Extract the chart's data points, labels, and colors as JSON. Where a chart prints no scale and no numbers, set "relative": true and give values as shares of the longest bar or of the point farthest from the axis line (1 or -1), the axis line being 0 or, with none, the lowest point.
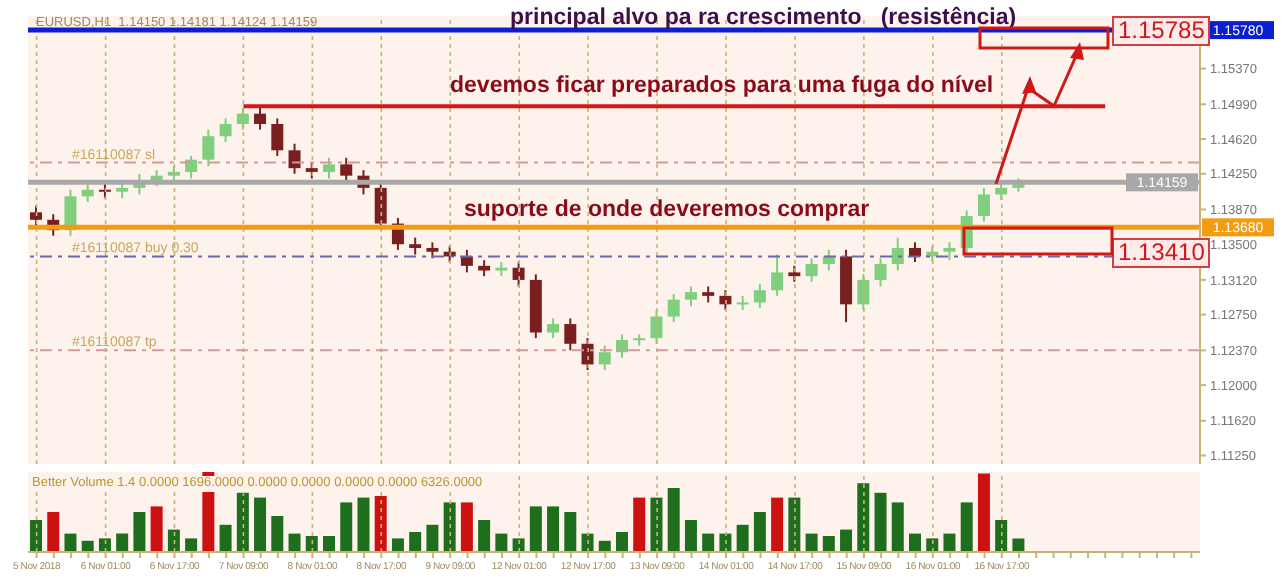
{
  "chart_data": [
    {
      "type": "candlestick",
      "title": "EURUSD,H1  1.14150 1.14181 1.14124 1.14159",
      "categories": [
        null,
        null,
        null,
        null,
        null,
        null,
        null,
        null,
        null,
        null,
        null,
        null,
        null,
        null,
        null,
        null,
        null,
        null,
        null,
        null,
        null,
        null,
        null,
        null,
        null,
        null,
        null,
        null,
        null,
        null,
        null,
        null,
        null,
        null,
        null,
        null,
        null,
        null,
        null,
        null,
        null,
        null,
        null,
        null,
        null,
        null,
        null,
        null,
        null,
        null,
        null,
        null,
        null,
        null,
        null,
        null,
        null,
        null,
        null,
        null,
        null,
        null,
        null,
        null,
        null,
        null,
        null,
        null
      ],
      "ohlc": [
        [
          1.1384,
          1.1391,
          1.1369,
          1.1376
        ],
        [
          1.1376,
          1.1382,
          1.1359,
          1.1365
        ],
        [
          1.1365,
          1.1408,
          1.1359,
          1.1401
        ],
        [
          1.1401,
          1.1414,
          1.1395,
          1.1408
        ],
        [
          1.1408,
          1.1414,
          1.1399,
          1.1406
        ],
        [
          1.1406,
          1.1416,
          1.1399,
          1.141
        ],
        [
          1.141,
          1.1425,
          1.1403,
          1.1418
        ],
        [
          1.1418,
          1.1429,
          1.1412,
          1.1423
        ],
        [
          1.1423,
          1.1433,
          1.1416,
          1.1427
        ],
        [
          1.1427,
          1.1444,
          1.142,
          1.144
        ],
        [
          1.144,
          1.1472,
          1.1433,
          1.1465
        ],
        [
          1.1465,
          1.1484,
          1.1459,
          1.1478
        ],
        [
          1.1478,
          1.1495,
          1.1472,
          1.1489
        ],
        [
          1.1489,
          1.1495,
          1.1472,
          1.1478
        ],
        [
          1.1478,
          1.1484,
          1.1444,
          1.145
        ],
        [
          1.145,
          1.1457,
          1.1425,
          1.1431
        ],
        [
          1.1431,
          1.1437,
          1.142,
          1.1427
        ],
        [
          1.1427,
          1.1442,
          1.142,
          1.1435
        ],
        [
          1.1435,
          1.1442,
          1.1416,
          1.1423
        ],
        [
          1.1423,
          1.1429,
          1.1403,
          1.141
        ],
        [
          1.141,
          1.1416,
          1.1365,
          1.1372
        ],
        [
          1.1372,
          1.1378,
          1.1344,
          1.135
        ],
        [
          1.135,
          1.1357,
          1.1339,
          1.1346
        ],
        [
          1.1346,
          1.1352,
          1.1335,
          1.1342
        ],
        [
          1.1342,
          1.1348,
          1.1331,
          1.1337
        ],
        [
          1.1337,
          1.1344,
          1.132,
          1.1327
        ],
        [
          1.1327,
          1.1333,
          1.1316,
          1.1322
        ],
        [
          1.1322,
          1.1331,
          1.1316,
          1.1325
        ],
        [
          1.1325,
          1.1331,
          1.1305,
          1.1312
        ],
        [
          1.1312,
          1.1318,
          1.125,
          1.1256
        ],
        [
          1.1256,
          1.1271,
          1.125,
          1.1265
        ],
        [
          1.1265,
          1.1271,
          1.1237,
          1.1244
        ],
        [
          1.1244,
          1.125,
          1.1216,
          1.1222
        ],
        [
          1.1222,
          1.1242,
          1.1216,
          1.1235
        ],
        [
          1.1235,
          1.1254,
          1.1229,
          1.1248
        ],
        [
          1.1248,
          1.1254,
          1.1242,
          1.125
        ],
        [
          1.125,
          1.128,
          1.1244,
          1.1273
        ],
        [
          1.1273,
          1.1297,
          1.1267,
          1.1291
        ],
        [
          1.1291,
          1.1305,
          1.1284,
          1.1299
        ],
        [
          1.1299,
          1.1305,
          1.1288,
          1.1295
        ],
        [
          1.1295,
          1.1301,
          1.128,
          1.1286
        ],
        [
          1.1286,
          1.1295,
          1.128,
          1.1288
        ],
        [
          1.1288,
          1.1308,
          1.1282,
          1.1301
        ],
        [
          1.1301,
          1.1339,
          1.1295,
          1.132
        ],
        [
          1.132,
          1.1327,
          1.131,
          1.1316
        ],
        [
          1.1316,
          1.1335,
          1.131,
          1.1329
        ],
        [
          1.1329,
          1.1344,
          1.1322,
          1.1337
        ],
        [
          1.1337,
          1.1344,
          1.1267,
          1.1286
        ],
        [
          1.1286,
          1.1318,
          1.128,
          1.1312
        ],
        [
          1.1312,
          1.1335,
          1.1305,
          1.1329
        ],
        [
          1.1329,
          1.1357,
          1.1322,
          1.1346
        ],
        [
          1.1346,
          1.1352,
          1.1331,
          1.1337
        ],
        [
          1.1337,
          1.1348,
          1.1331,
          1.1342
        ],
        [
          1.1342,
          1.1352,
          1.1333,
          1.1346
        ],
        [
          1.1346,
          1.1386,
          1.1339,
          1.138
        ],
        [
          1.138,
          1.141,
          1.1374,
          1.1403
        ],
        [
          1.1403,
          1.1416,
          1.1397,
          1.141
        ],
        [
          1.141,
          1.142,
          1.1406,
          1.1414
        ],
        null,
        null,
        null,
        null,
        null,
        null,
        null,
        null,
        null,
        null
      ],
      "colors": [
        "#7a1f1f",
        "#7a1f1f",
        "#7fcf7f",
        "#7fcf7f",
        "#7a1f1f",
        "#7fcf7f",
        "#7fcf7f",
        "#7fcf7f",
        "#7fcf7f",
        "#7fcf7f",
        "#7fcf7f",
        "#7fcf7f",
        "#7fcf7f",
        "#7a1f1f",
        "#7a1f1f",
        "#7a1f1f",
        "#7a1f1f",
        "#7fcf7f",
        "#7a1f1f",
        "#7a1f1f",
        "#7a1f1f",
        "#7a1f1f",
        "#7a1f1f",
        "#7a1f1f",
        "#7a1f1f",
        "#7a1f1f",
        "#7a1f1f",
        "#7fcf7f",
        "#7a1f1f",
        "#7a1f1f",
        "#7fcf7f",
        "#7a1f1f",
        "#7a1f1f",
        "#7fcf7f",
        "#7fcf7f",
        "#7fcf7f",
        "#7fcf7f",
        "#7fcf7f",
        "#7fcf7f",
        "#7a1f1f",
        "#7a1f1f",
        "#7fcf7f",
        "#7fcf7f",
        "#7fcf7f",
        "#7a1f1f",
        "#7fcf7f",
        "#7fcf7f",
        "#7a1f1f",
        "#7fcf7f",
        "#7fcf7f",
        "#7fcf7f",
        "#7a1f1f",
        "#7fcf7f",
        "#7fcf7f",
        "#7fcf7f",
        "#7fcf7f",
        "#7fcf7f",
        "#7fcf7f",
        null,
        null,
        null,
        null,
        null,
        null,
        null,
        null,
        null,
        null
      ],
      "series": [
        {
          "type": "line",
          "color": "#d01818",
          "values": [
            null,
            null,
            null,
            null,
            null,
            null,
            null,
            null,
            null,
            null,
            null,
            null,
            1.1497,
            1.1497,
            1.1497,
            1.1497,
            1.1497,
            1.1497,
            1.1497,
            1.1497,
            1.1497,
            1.1497,
            1.1497,
            1.1497,
            1.1497,
            1.1497,
            1.1497,
            1.1497,
            1.1497,
            1.1497,
            1.1497,
            1.1497,
            1.1497,
            1.1497,
            1.1497,
            1.1497,
            1.1497,
            1.1497,
            1.1497,
            1.1497,
            1.1497,
            1.1497,
            1.1497,
            1.1497,
            1.1497,
            1.1497,
            1.1497,
            1.1497,
            1.1497,
            1.1497,
            1.1497,
            1.1497,
            1.1497,
            1.1497,
            1.1497,
            1.1497,
            1.1497,
            1.1497,
            1.1497,
            1.1497,
            1.1497,
            1.1497,
            1.1497,
            null,
            null,
            null,
            null,
            null
          ]
        }
      ],
      "ylim": [
        1.1116,
        1.1593
      ],
      "yticks": [
        {
          "value": 1.1125,
          "label": "1.11250"
        },
        {
          "value": 1.1162,
          "label": "1.11620"
        },
        {
          "value": 1.12,
          "label": "1.12000"
        },
        {
          "value": 1.1237,
          "label": "1.12370"
        },
        {
          "value": 1.1275,
          "label": "1.12750"
        },
        {
          "value": 1.1312,
          "label": "1.13120"
        },
        {
          "value": 1.135,
          "label": "1.13500"
        },
        {
          "value": 1.1387,
          "label": "1.13870"
        },
        {
          "value": 1.1425,
          "label": "1.14250"
        },
        {
          "value": 1.1462,
          "label": "1.14620"
        },
        {
          "value": 1.1499,
          "label": "1.14990"
        },
        {
          "value": 1.1537,
          "label": "1.15370"
        }
      ],
      "ref_lines": [
        {
          "axis": "y",
          "value": 1.1578,
          "label": "1.15780",
          "color": "#0b1fd0",
          "line_style": "solid"
        },
        {
          "axis": "y",
          "value": 1.1368,
          "label": "1.13680",
          "color": "#f39c12",
          "line_style": "solid"
        },
        {
          "axis": "y",
          "value": 1.14159,
          "label": "1.14159",
          "color": "#a8a8a8",
          "line_style": "solid"
        },
        {
          "axis": "y",
          "value": 1.1437,
          "label": "#16110087 sl",
          "color": "#d49a9a",
          "line_style": "dashed"
        },
        {
          "axis": "y",
          "value": 1.1337,
          "label": "#16110087 buy 0.30",
          "color": "#6a6aa8",
          "line_style": "dashed"
        },
        {
          "axis": "y",
          "value": 1.1237,
          "label": "#16110087 tp",
          "color": "#d49a9a",
          "line_style": "dashed"
        }
      ],
      "annotations": [
        "principal alvo pa ra crescimento   (resistência)",
        "devemos ficar preparados para uma fuga do nível",
        "suporte de onde deveremos comprar",
        {
          "text": "1.15785",
          "y": 1.15785
        },
        {
          "text": "1.13410",
          "y": 1.1341
        }
      ],
      "grid": "x",
      "tick_labels": "y"
    },
    {
      "type": "bar",
      "relative": true,
      "title": "Better Volume 1.4 0.0000 1696.0000 0.0000 0.0000 0.0000 0.0000 6326.0000",
      "categories": [
        "5 Nov 2018",
        null,
        null,
        null,
        "6 Nov 01:00",
        null,
        null,
        null,
        "6 Nov 17:00",
        null,
        null,
        null,
        "7 Nov 09:00",
        null,
        null,
        null,
        "8 Nov 01:00",
        null,
        null,
        null,
        "8 Nov 17:00",
        null,
        null,
        null,
        "9 Nov 09:00",
        null,
        null,
        null,
        "12 Nov 01:00",
        null,
        null,
        null,
        "12 Nov 17:00",
        null,
        null,
        null,
        "13 Nov 09:00",
        null,
        null,
        null,
        "14 Nov 01:00",
        null,
        null,
        null,
        "14 Nov 17:00",
        null,
        null,
        null,
        "15 Nov 09:00",
        null,
        null,
        null,
        "16 Nov 01:00",
        null,
        null,
        null,
        "16 Nov 17:00",
        null,
        null,
        null,
        null,
        null,
        null,
        null,
        null,
        null,
        null,
        null
      ],
      "values": [
        0.4,
        0.5,
        0.23,
        0.14,
        0.17,
        0.23,
        0.5,
        0.57,
        0.28,
        0.17,
        1,
        0.34,
        0.74,
        0.68,
        0.45,
        0.23,
        0.2,
        0.2,
        0.62,
        0.68,
        0.7,
        0.17,
        0.25,
        0.34,
        0.62,
        0.62,
        0.4,
        0.23,
        0.17,
        0.57,
        0.57,
        0.5,
        0.23,
        0.14,
        0.25,
        0.68,
        0.68,
        0.8,
        0.4,
        0.23,
        0.23,
        0.34,
        0.5,
        0.68,
        0.68,
        0.23,
        0.2,
        0.28,
        0.86,
        0.74,
        0.62,
        0.23,
        0.17,
        0.23,
        0.62,
        0.98,
        0.4,
        0.17,
        null,
        null,
        null,
        null,
        null,
        null,
        null,
        null,
        null,
        null
      ],
      "colors": [
        "#1e6e1e",
        "#cc1111",
        "#1e6e1e",
        "#1e6e1e",
        "#1e6e1e",
        "#1e6e1e",
        "#1e6e1e",
        "#cc1111",
        "#1e6e1e",
        "#1e6e1e",
        "#cc1111",
        "#1e6e1e",
        "#1e6e1e",
        "#1e6e1e",
        "#1e6e1e",
        "#1e6e1e",
        "#1e6e1e",
        "#1e6e1e",
        "#1e6e1e",
        "#1e6e1e",
        "#cc1111",
        "#1e6e1e",
        "#1e6e1e",
        "#1e6e1e",
        "#1e6e1e",
        "#cc1111",
        "#1e6e1e",
        "#1e6e1e",
        "#1e6e1e",
        "#1e6e1e",
        "#1e6e1e",
        "#1e6e1e",
        "#1e6e1e",
        "#1e6e1e",
        "#1e6e1e",
        "#cc1111",
        "#1e6e1e",
        "#1e6e1e",
        "#1e6e1e",
        "#1e6e1e",
        "#1e6e1e",
        "#1e6e1e",
        "#1e6e1e",
        "#cc1111",
        "#1e6e1e",
        "#1e6e1e",
        "#1e6e1e",
        "#1e6e1e",
        "#1e6e1e",
        "#1e6e1e",
        "#1e6e1e",
        "#1e6e1e",
        "#1e6e1e",
        "#1e6e1e",
        "#1e6e1e",
        "#cc1111",
        "#1e6e1e",
        "#1e6e1e",
        null,
        null,
        null,
        null,
        null,
        null,
        null,
        null,
        null,
        null
      ],
      "grid": "x"
    }
  ]
}
